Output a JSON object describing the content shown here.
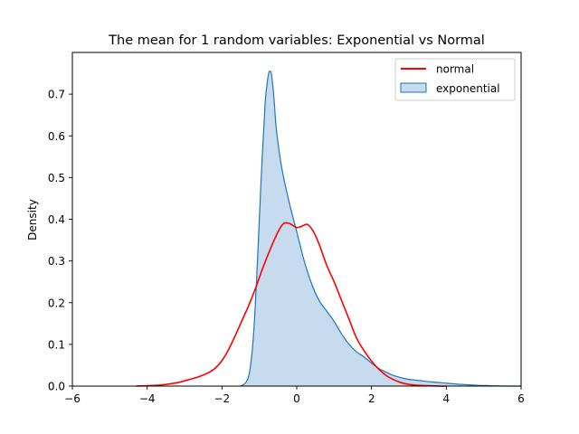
{
  "chart_data": {
    "type": "area",
    "title": "The mean for 1 random variables: Exponential vs Normal",
    "xlabel": "",
    "ylabel": "Density",
    "xlim": [
      -6,
      6
    ],
    "ylim": [
      0,
      0.8
    ],
    "x_ticks": [
      -6,
      -4,
      -2,
      0,
      2,
      4,
      6
    ],
    "x_tick_labels": [
      "−6",
      "−4",
      "−2",
      "0",
      "2",
      "4",
      "6"
    ],
    "y_ticks": [
      0.0,
      0.1,
      0.2,
      0.3,
      0.4,
      0.5,
      0.6,
      0.7
    ],
    "y_tick_labels": [
      "0.0",
      "0.1",
      "0.2",
      "0.3",
      "0.4",
      "0.5",
      "0.6",
      "0.7"
    ],
    "grid": false,
    "legend_position": "top-right",
    "series": [
      {
        "name": "normal",
        "style": "line",
        "color": "#ff0000",
        "x": [
          -4.3,
          -4.0,
          -3.6,
          -3.2,
          -2.9,
          -2.6,
          -2.3,
          -2.1,
          -1.9,
          -1.7,
          -1.5,
          -1.3,
          -1.1,
          -0.9,
          -0.7,
          -0.5,
          -0.35,
          -0.2,
          -0.1,
          0.0,
          0.1,
          0.2,
          0.3,
          0.45,
          0.6,
          0.8,
          1.0,
          1.2,
          1.4,
          1.6,
          1.8,
          2.0,
          2.2,
          2.4,
          2.6,
          2.8,
          3.0,
          3.2,
          3.5,
          3.8,
          4.0
        ],
        "y": [
          0.0,
          0.001,
          0.003,
          0.008,
          0.015,
          0.023,
          0.035,
          0.05,
          0.075,
          0.11,
          0.15,
          0.19,
          0.235,
          0.285,
          0.33,
          0.37,
          0.39,
          0.39,
          0.385,
          0.38,
          0.382,
          0.386,
          0.387,
          0.37,
          0.34,
          0.29,
          0.25,
          0.205,
          0.16,
          0.115,
          0.085,
          0.06,
          0.04,
          0.025,
          0.015,
          0.008,
          0.004,
          0.002,
          0.001,
          0.0,
          0.0
        ]
      },
      {
        "name": "exponential",
        "style": "filled",
        "color": "#1f77b4",
        "fill": "#c6dbed",
        "x": [
          -1.5,
          -1.35,
          -1.25,
          -1.15,
          -1.05,
          -0.95,
          -0.85,
          -0.8,
          -0.75,
          -0.72,
          -0.68,
          -0.64,
          -0.6,
          -0.55,
          -0.45,
          -0.35,
          -0.2,
          0.0,
          0.2,
          0.4,
          0.6,
          0.8,
          1.0,
          1.2,
          1.4,
          1.6,
          1.8,
          2.0,
          2.2,
          2.4,
          2.6,
          2.8,
          3.0,
          3.3,
          3.6,
          4.0,
          4.4,
          4.8,
          5.2,
          5.6,
          6.0
        ],
        "y": [
          0.0,
          0.01,
          0.04,
          0.13,
          0.3,
          0.5,
          0.67,
          0.72,
          0.75,
          0.755,
          0.75,
          0.72,
          0.68,
          0.62,
          0.55,
          0.5,
          0.44,
          0.37,
          0.3,
          0.245,
          0.205,
          0.18,
          0.155,
          0.125,
          0.1,
          0.082,
          0.07,
          0.055,
          0.042,
          0.033,
          0.025,
          0.02,
          0.016,
          0.013,
          0.01,
          0.007,
          0.004,
          0.002,
          0.001,
          0.0,
          0.0
        ]
      }
    ]
  }
}
